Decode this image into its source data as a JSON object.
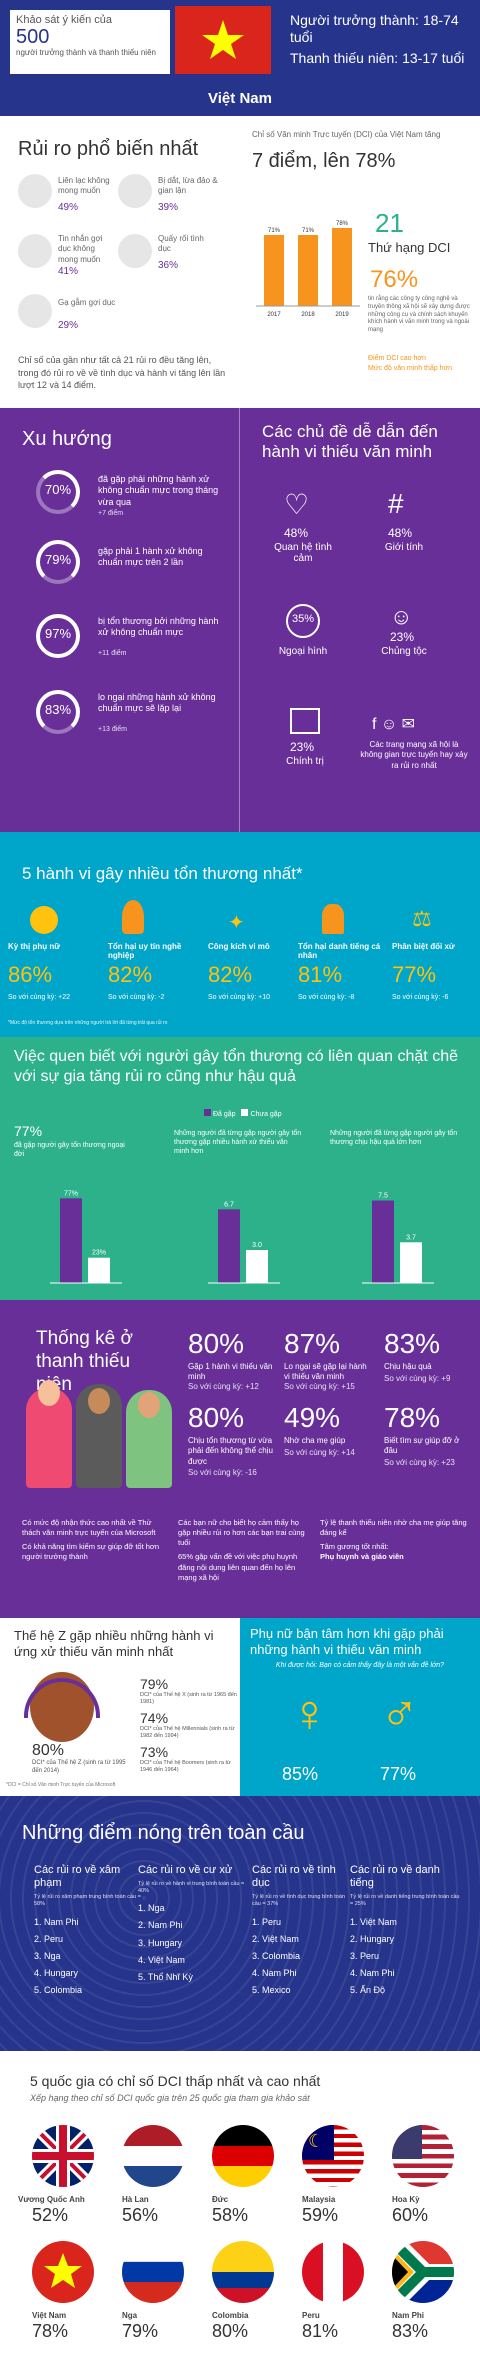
{
  "header": {
    "survey_title": "Khảo sát ý kiến của",
    "survey_count": "500",
    "survey_desc": "người trưởng thành và thanh thiếu niên",
    "adult_range": "Người trưởng thành: 18-74 tuổi",
    "teen_range": "Thanh thiếu niên: 13-17 tuổi",
    "country": "Việt Nam"
  },
  "risks": {
    "title": "Rủi ro phổ biến nhất",
    "items": [
      {
        "label": "Liên lạc không mong muốn",
        "value": "49%",
        "icon": "chat-icon"
      },
      {
        "label": "Bị dắt, lừa đảo & gian lận",
        "value": "39%",
        "icon": "hook-icon"
      },
      {
        "label": "Tin nhắn gợi dục không mong muốn",
        "value": "41%",
        "icon": "phone-icon"
      },
      {
        "label": "Quấy rối tình dục",
        "value": "36%",
        "icon": "whistle-icon"
      },
      {
        "label": "Gạ gẫm gợi dục",
        "value": "29%",
        "icon": "message-icon"
      }
    ],
    "summary1": "Chỉ số của gần như tất cả 21 rủi ro đều tăng lên, trong đó rủi ro về về tình dục và hành vi tăng lên lần lượt 12 và 14 điểm.",
    "dci_caption": "Chỉ số Văn minh Trực tuyến (DCI) của Việt Nam tăng",
    "dci_increase": "7 điểm, lên 78%",
    "chart_data": {
      "type": "bar",
      "categories": [
        "2017",
        "2018",
        "2019"
      ],
      "values": [
        71,
        71,
        78
      ],
      "labels": [
        "71%",
        "71%",
        "78%"
      ],
      "ylim": [
        0,
        100
      ]
    },
    "rank_number": "21",
    "rank_label": "Thứ hạng DCI",
    "tech_value": "76%",
    "tech_desc": "tin rằng các công ty công nghệ và truyền thông xã hội sẽ xây dựng được những công cụ và chính sách khuyến khích hành vi văn minh trong và ngoài mạng",
    "legend_higher": "Điểm DCI cao hơn",
    "legend_lower": "Mức độ văn minh thấp hơn"
  },
  "trends": {
    "title": "Xu hướng",
    "items": [
      {
        "value": "70%",
        "text": "đã gặp phải những hành xử không chuẩn mực trong tháng vừa qua",
        "delta": "+7 điểm"
      },
      {
        "value": "79%",
        "text": "gặp phải 1 hành xử không chuẩn mực trên 2 lần",
        "delta": ""
      },
      {
        "value": "97%",
        "text": "bị tổn thương bởi những hành xử không chuẩn mực",
        "delta": "+11 điểm"
      },
      {
        "value": "83%",
        "text": "lo ngại những hành xử không chuẩn mực sẽ lặp lại",
        "delta": "+13 điểm"
      }
    ],
    "topics_title": "Các chủ đề dễ dẫn đến hành vi thiếu văn minh",
    "topics": [
      {
        "value": "48%",
        "label": "Quan hệ tình cảm",
        "icon": "broken-heart-icon"
      },
      {
        "value": "48%",
        "label": "Giới tính",
        "icon": "hashtag-icon"
      },
      {
        "value": "35%",
        "label": "Ngoại hình",
        "icon": "scale-icon"
      },
      {
        "value": "23%",
        "label": "Chủng tộc",
        "icon": "people-icon"
      },
      {
        "value": "23%",
        "label": "Chính trị",
        "icon": "ballot-icon"
      }
    ],
    "social_text": "Các trang mạng xã hội là không gian trực tuyến hay xảy ra rủi ro nhất"
  },
  "worst": {
    "title": "5 hành vi gây nhiều tổn thương nhất*",
    "items": [
      {
        "label": "Kỳ thị phụ nữ",
        "value": "86%",
        "delta": "So với cùng kỳ: +22",
        "icon": "sign-icon"
      },
      {
        "label": "Tổn hại uy tín nghề nghiệp",
        "value": "82%",
        "delta": "So với cùng kỳ: -2",
        "icon": "medal-icon"
      },
      {
        "label": "Công kích vi mô",
        "value": "82%",
        "delta": "So với cùng kỳ: +10",
        "icon": "mosquito-icon"
      },
      {
        "label": "Tổn hại danh tiếng cá nhân",
        "value": "81%",
        "delta": "So với cùng kỳ: -8",
        "icon": "person-icon"
      },
      {
        "label": "Phân biệt đối xử",
        "value": "77%",
        "delta": "So với cùng kỳ: -6",
        "icon": "scale-icon"
      }
    ],
    "footnote": "*Mức độ tổn thương dựa trên những người trả lời đã từng trải qua rủi ro"
  },
  "know": {
    "title": "Việc quen biết với người gây tổn thương có liên quan chặt chẽ với sự gia tăng rủi ro cũng như hậu quả",
    "legend_yes": "Đã gặp",
    "legend_no": "Chưa gặp",
    "left_value": "77%",
    "left_text": "đã gặp người gây tổn thương ngoại đời",
    "charts": [
      {
        "caption": "",
        "yes": 77,
        "no": 23,
        "yes_label": "77%",
        "no_label": "23%"
      },
      {
        "caption": "Những người đã từng gặp người gây tổn thương gặp nhiều hành xử thiếu văn minh hơn",
        "yes": 6.7,
        "no": 3.0,
        "yes_label": "6.7",
        "no_label": "3.0"
      },
      {
        "caption": "Những người đã từng gặp người gây tổn thương chịu hậu quả lớn hơn",
        "yes": 7.5,
        "no": 3.7,
        "yes_label": "7.5",
        "no_label": "3.7"
      }
    ]
  },
  "teens": {
    "title": "Thống kê ở thanh thiếu niên",
    "stats": [
      {
        "value": "80%",
        "label": "Gặp 1 hành vi thiếu văn minh",
        "delta": "So với cùng kỳ: +12"
      },
      {
        "value": "87%",
        "label": "Lo ngại sẽ gặp lại hành vi thiếu văn minh",
        "delta": "So với cùng kỳ: +15"
      },
      {
        "value": "83%",
        "label": "Chịu hậu quả",
        "delta": "So với cùng kỳ: +9"
      },
      {
        "value": "80%",
        "label": "Chịu tổn thương từ vừa phải đến không thể chịu được",
        "delta": "So với cùng kỳ: -16"
      },
      {
        "value": "49%",
        "label": "Nhờ cha mẹ giúp",
        "delta": "So với cùng kỳ: +14"
      },
      {
        "value": "78%",
        "label": "Biết tìm sự giúp đỡ ở đâu",
        "delta": "So với cùng kỳ: +23"
      }
    ],
    "notes_col1": [
      "Có mức độ nhận thức cao nhất về Thử thách văn minh trực tuyến của Microsoft",
      "Có khả năng tìm kiếm sự giúp đỡ tốt hơn người trưởng thành"
    ],
    "notes_col2": [
      "Các bạn nữ cho biết họ cảm thấy họ gặp nhiều rủi ro hơn các bạn trai cùng tuổi",
      "65% gặp vấn đề với việc phụ huynh đăng nội dung liên quan đến họ lên mạng xã hội"
    ],
    "notes_col3": [
      "Tỷ lệ thanh thiếu niên nhờ cha mẹ giúp tăng đáng kể",
      "Tâm gương tốt nhất:"
    ],
    "role_models": "Phụ huynh và giáo viên"
  },
  "genz": {
    "title": "Thế hệ Z gặp nhiều những hành vi ứng xử thiếu văn minh nhất",
    "main_value": "80%",
    "main_label": "DCI* của Thế hệ Z (sinh ra từ 1995 đến 2014)",
    "items": [
      {
        "value": "79%",
        "label": "DCI* của Thế hệ X (sinh ra từ 1965 đến 1981)"
      },
      {
        "value": "74%",
        "label": "DCI* của Thế hệ Millennials (sinh ra từ 1982 đến 1994)"
      },
      {
        "value": "73%",
        "label": "DCI* của Thế hệ Boomers (sinh ra từ 1946 đến 1964)"
      }
    ],
    "footnote": "*DCI = Chỉ số Văn minh Trực tuyến của Microsoft"
  },
  "gender": {
    "title": "Phụ nữ bận tâm hơn khi gặp phải những hành vi thiếu văn minh",
    "question": "Khi được hỏi: Bạn có cảm thấy đây là một vấn đề lớn?",
    "female_value": "85%",
    "male_value": "77%"
  },
  "hotspots": {
    "title": "Những điểm nóng trên toàn cầu",
    "columns": [
      {
        "title": "Các rủi ro về xâm phạm",
        "sub": "Tỷ lệ rủi ro xâm phạm trung bình toàn cầu = 58%",
        "items": [
          "1. Nam Phi",
          "2. Peru",
          "3. Nga",
          "4. Hungary",
          "5. Colombia"
        ]
      },
      {
        "title": "Các rủi ro về cư xử",
        "sub": "Tỷ lệ rủi ro về hành vi trung bình toàn cầu = 40%",
        "items": [
          "1. Nga",
          "2. Nam Phi",
          "3. Hungary",
          "4. Việt Nam",
          "5. Thổ Nhĩ Kỳ"
        ]
      },
      {
        "title": "Các rủi ro về tình dục",
        "sub": "Tỷ lệ rủi ro về tình dục trung bình toàn cầu = 37%",
        "items": [
          "1. Peru",
          "2. Việt Nam",
          "3. Colombia",
          "4. Nam Phi",
          "5. Mexico"
        ]
      },
      {
        "title": "Các rủi ro về danh tiếng",
        "sub": "Tỷ lệ rủi ro về danh tiếng trung bình toàn cầu = 25%",
        "items": [
          "1. Việt Nam",
          "2. Hungary",
          "3. Peru",
          "4. Nam Phi",
          "5. Ấn Độ"
        ]
      }
    ]
  },
  "countries": {
    "title": "5 quốc gia có chỉ số DCI thấp nhất và cao nhất",
    "subtitle": "Xếp hạng theo chỉ số DCI quốc gia trên 25 quốc gia tham gia khảo sát",
    "top": [
      {
        "name": "Vương Quốc Anh",
        "value": "52%",
        "flag": "uk-flag-icon"
      },
      {
        "name": "Hà Lan",
        "value": "56%",
        "flag": "netherlands-flag-icon"
      },
      {
        "name": "Đức",
        "value": "58%",
        "flag": "germany-flag-icon"
      },
      {
        "name": "Malaysia",
        "value": "59%",
        "flag": "malaysia-flag-icon"
      },
      {
        "name": "Hoa Kỳ",
        "value": "60%",
        "flag": "usa-flag-icon"
      }
    ],
    "bottom": [
      {
        "name": "Việt Nam",
        "value": "78%",
        "flag": "vietnam-flag-icon"
      },
      {
        "name": "Nga",
        "value": "79%",
        "flag": "russia-flag-icon"
      },
      {
        "name": "Colombia",
        "value": "80%",
        "flag": "colombia-flag-icon"
      },
      {
        "name": "Peru",
        "value": "81%",
        "flag": "peru-flag-icon"
      },
      {
        "name": "Nam Phi",
        "value": "83%",
        "flag": "south-africa-flag-icon"
      }
    ]
  },
  "colors": {
    "navy": "#26348c",
    "purple": "#682f98",
    "cyan": "#00a5ca",
    "teal": "#2cb18b",
    "orange": "#f7941d",
    "yellow": "#ffc20e"
  }
}
